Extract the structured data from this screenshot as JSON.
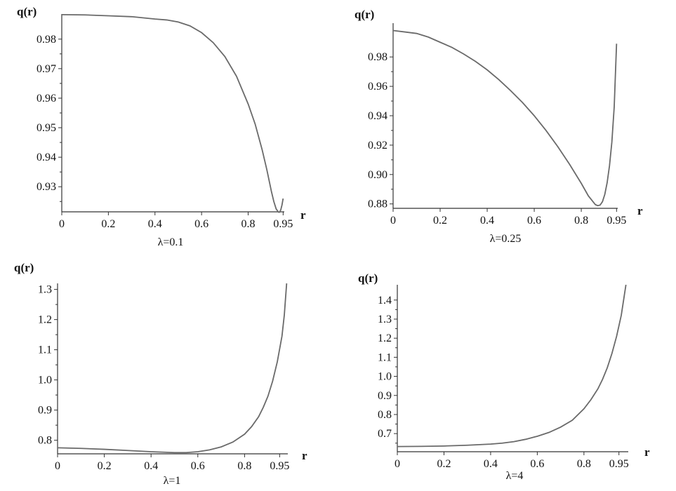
{
  "chart_data": [
    {
      "type": "line",
      "caption": "λ=0.1",
      "xlabel": "r",
      "ylabel": "q(r)",
      "xlim": [
        0,
        0.955
      ],
      "ylim": [
        0.9215,
        0.9885
      ],
      "x_ticks": [
        0,
        0.2,
        0.4,
        0.6,
        0.8,
        0.95
      ],
      "x_tick_labels": [
        "0",
        "0.2",
        "0.4",
        "0.6",
        "0.8",
        "0.95"
      ],
      "y_ticks": [
        0.93,
        0.94,
        0.95,
        0.96,
        0.97,
        0.98
      ],
      "y_tick_labels": [
        "0.93",
        "0.94",
        "0.95",
        "0.96",
        "0.97",
        "0.98"
      ],
      "grid": false,
      "series": [
        {
          "x": [
            0,
            0.1,
            0.2,
            0.3,
            0.4,
            0.45,
            0.5,
            0.55,
            0.6,
            0.65,
            0.7,
            0.75,
            0.8,
            0.83,
            0.86,
            0.88,
            0.9,
            0.91,
            0.92,
            0.93,
            0.935,
            0.94,
            0.945,
            0.95
          ],
          "y": [
            0.9883,
            0.9882,
            0.9879,
            0.9876,
            0.9868,
            0.9865,
            0.9858,
            0.9845,
            0.9822,
            0.9788,
            0.9741,
            0.9674,
            0.958,
            0.9512,
            0.9425,
            0.9358,
            0.9283,
            0.925,
            0.9225,
            0.9214,
            0.9214,
            0.9222,
            0.9238,
            0.926
          ]
        }
      ]
    },
    {
      "type": "line",
      "caption": "λ=0.25",
      "xlabel": "r",
      "ylabel": "q(r)",
      "xlim": [
        0,
        0.955
      ],
      "ylim": [
        0.877,
        1.003
      ],
      "x_ticks": [
        0,
        0.2,
        0.4,
        0.6,
        0.8,
        0.95
      ],
      "x_tick_labels": [
        "0",
        "0.2",
        "0.4",
        "0.6",
        "0.8",
        "0.95"
      ],
      "y_ticks": [
        0.88,
        0.9,
        0.92,
        0.94,
        0.96,
        0.98
      ],
      "y_tick_labels": [
        "0.88",
        "0.90",
        "0.92",
        "0.94",
        "0.96",
        "0.98"
      ],
      "grid": false,
      "series": [
        {
          "x": [
            0,
            0.05,
            0.1,
            0.15,
            0.2,
            0.25,
            0.3,
            0.35,
            0.4,
            0.45,
            0.5,
            0.55,
            0.6,
            0.65,
            0.7,
            0.75,
            0.8,
            0.83,
            0.86,
            0.87,
            0.88,
            0.89,
            0.9,
            0.91,
            0.92,
            0.93,
            0.94,
            0.95
          ],
          "y": [
            0.998,
            0.997,
            0.996,
            0.9935,
            0.99,
            0.9865,
            0.982,
            0.977,
            0.9712,
            0.9645,
            0.957,
            0.949,
            0.94,
            0.93,
            0.919,
            0.907,
            0.894,
            0.8855,
            0.8795,
            0.8788,
            0.8792,
            0.8815,
            0.8865,
            0.8945,
            0.906,
            0.922,
            0.946,
            0.989
          ]
        }
      ]
    },
    {
      "type": "line",
      "caption": "λ=1",
      "xlabel": "r",
      "ylabel": "q(r)",
      "xlim": [
        0,
        0.985
      ],
      "ylim": [
        0.755,
        1.32
      ],
      "x_ticks": [
        0,
        0.2,
        0.4,
        0.6,
        0.8,
        0.95
      ],
      "x_tick_labels": [
        "0",
        "0.2",
        "0.4",
        "0.6",
        "0.8",
        "0.95"
      ],
      "y_ticks": [
        0.8,
        0.9,
        1.0,
        1.1,
        1.2,
        1.3
      ],
      "y_tick_labels": [
        "0.8",
        "0.9",
        "1.0",
        "1.1",
        "1.2",
        "1.3"
      ],
      "grid": false,
      "series": [
        {
          "x": [
            0,
            0.1,
            0.2,
            0.3,
            0.4,
            0.5,
            0.55,
            0.6,
            0.65,
            0.7,
            0.75,
            0.8,
            0.83,
            0.86,
            0.88,
            0.9,
            0.92,
            0.94,
            0.96,
            0.97,
            0.98
          ],
          "y": [
            0.775,
            0.773,
            0.77,
            0.766,
            0.762,
            0.759,
            0.759,
            0.762,
            0.768,
            0.778,
            0.794,
            0.82,
            0.845,
            0.878,
            0.909,
            0.946,
            0.996,
            1.06,
            1.145,
            1.215,
            1.32
          ]
        }
      ]
    },
    {
      "type": "line",
      "caption": "λ=4",
      "xlabel": "r",
      "ylabel": "q(r)",
      "xlim": [
        0,
        0.99
      ],
      "ylim": [
        0.605,
        1.48
      ],
      "x_ticks": [
        0,
        0.2,
        0.4,
        0.6,
        0.8,
        0.95
      ],
      "x_tick_labels": [
        "0",
        "0.2",
        "0.4",
        "0.6",
        "0.8",
        "0.95"
      ],
      "y_ticks": [
        0.7,
        0.8,
        0.9,
        1.0,
        1.1,
        1.2,
        1.3,
        1.4
      ],
      "y_tick_labels": [
        "0.7",
        "0.8",
        "0.9",
        "1.0",
        "1.1",
        "1.2",
        "1.3",
        "1.4"
      ],
      "grid": false,
      "series": [
        {
          "x": [
            0,
            0.1,
            0.2,
            0.3,
            0.4,
            0.45,
            0.5,
            0.55,
            0.6,
            0.65,
            0.7,
            0.75,
            0.8,
            0.83,
            0.86,
            0.88,
            0.9,
            0.92,
            0.94,
            0.96,
            0.98
          ],
          "y": [
            0.632,
            0.633,
            0.635,
            0.639,
            0.645,
            0.65,
            0.658,
            0.67,
            0.686,
            0.706,
            0.734,
            0.77,
            0.83,
            0.878,
            0.935,
            0.985,
            1.045,
            1.12,
            1.21,
            1.32,
            1.48
          ]
        }
      ]
    }
  ]
}
